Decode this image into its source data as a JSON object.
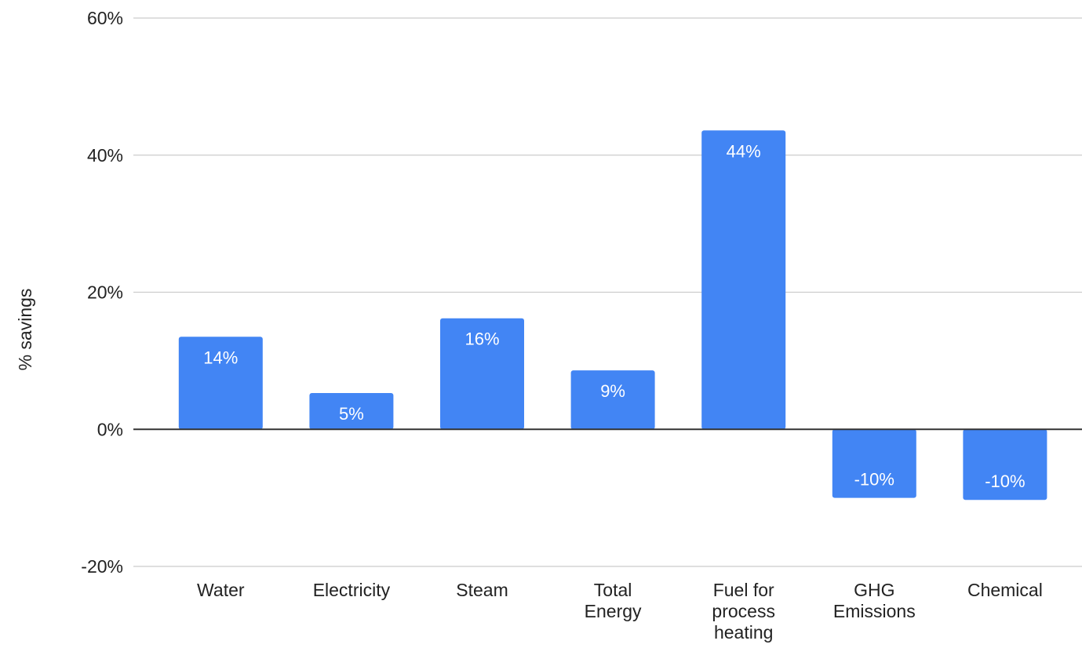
{
  "chart_data": {
    "type": "bar",
    "categories": [
      [
        "Water"
      ],
      [
        "Electricity"
      ],
      [
        "Steam"
      ],
      [
        "Total",
        "Energy"
      ],
      [
        "Fuel  for",
        "process",
        "heating"
      ],
      [
        "GHG",
        "Emissions"
      ],
      [
        "Chemical"
      ]
    ],
    "values": [
      13.5,
      5.3,
      16.2,
      8.6,
      43.6,
      -10.0,
      -10.3
    ],
    "data_labels": [
      "14%",
      "5%",
      "16%",
      "9%",
      "44%",
      "-10%",
      "-10%"
    ],
    "ylabel": "% savings",
    "ylim": [
      -20,
      60
    ],
    "yticks": [
      -20,
      0,
      20,
      40,
      60
    ],
    "ytick_labels": [
      "-20%",
      "0%",
      "20%",
      "40%",
      "60%"
    ],
    "grid": true,
    "colors": {
      "bar": "#4285f4",
      "gridline": "#cccccc",
      "zero_line": "#333333",
      "text": "#222222",
      "data_label": "#ffffff"
    }
  }
}
